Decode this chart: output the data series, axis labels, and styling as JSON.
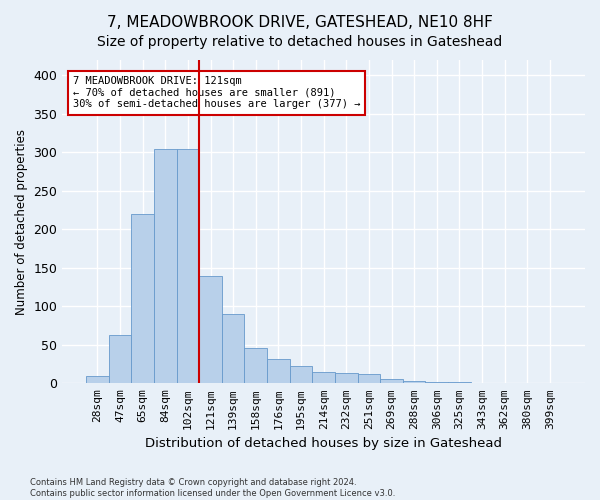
{
  "title": "7, MEADOWBROOK DRIVE, GATESHEAD, NE10 8HF",
  "subtitle": "Size of property relative to detached houses in Gateshead",
  "xlabel": "Distribution of detached houses by size in Gateshead",
  "ylabel": "Number of detached properties",
  "bar_labels": [
    "28sqm",
    "47sqm",
    "65sqm",
    "84sqm",
    "102sqm",
    "121sqm",
    "139sqm",
    "158sqm",
    "176sqm",
    "195sqm",
    "214sqm",
    "232sqm",
    "251sqm",
    "269sqm",
    "288sqm",
    "306sqm",
    "325sqm",
    "343sqm",
    "362sqm",
    "380sqm",
    "399sqm"
  ],
  "bar_values": [
    10,
    63,
    220,
    305,
    305,
    140,
    90,
    46,
    32,
    22,
    15,
    14,
    12,
    5,
    3,
    2,
    2,
    1,
    1,
    1,
    1
  ],
  "bar_color": "#b8d0ea",
  "bar_edge_color": "#6699cc",
  "vline_index": 5,
  "vline_color": "#cc0000",
  "annotation_text": "7 MEADOWBROOK DRIVE: 121sqm\n← 70% of detached houses are smaller (891)\n30% of semi-detached houses are larger (377) →",
  "annotation_box_color": "#ffffff",
  "annotation_box_edge": "#cc0000",
  "ylim": [
    0,
    420
  ],
  "yticks": [
    0,
    50,
    100,
    150,
    200,
    250,
    300,
    350,
    400
  ],
  "footer_line1": "Contains HM Land Registry data © Crown copyright and database right 2024.",
  "footer_line2": "Contains public sector information licensed under the Open Government Licence v3.0.",
  "bg_color": "#e8f0f8",
  "grid_color": "#ffffff",
  "title_fontsize": 11,
  "tick_fontsize": 8
}
